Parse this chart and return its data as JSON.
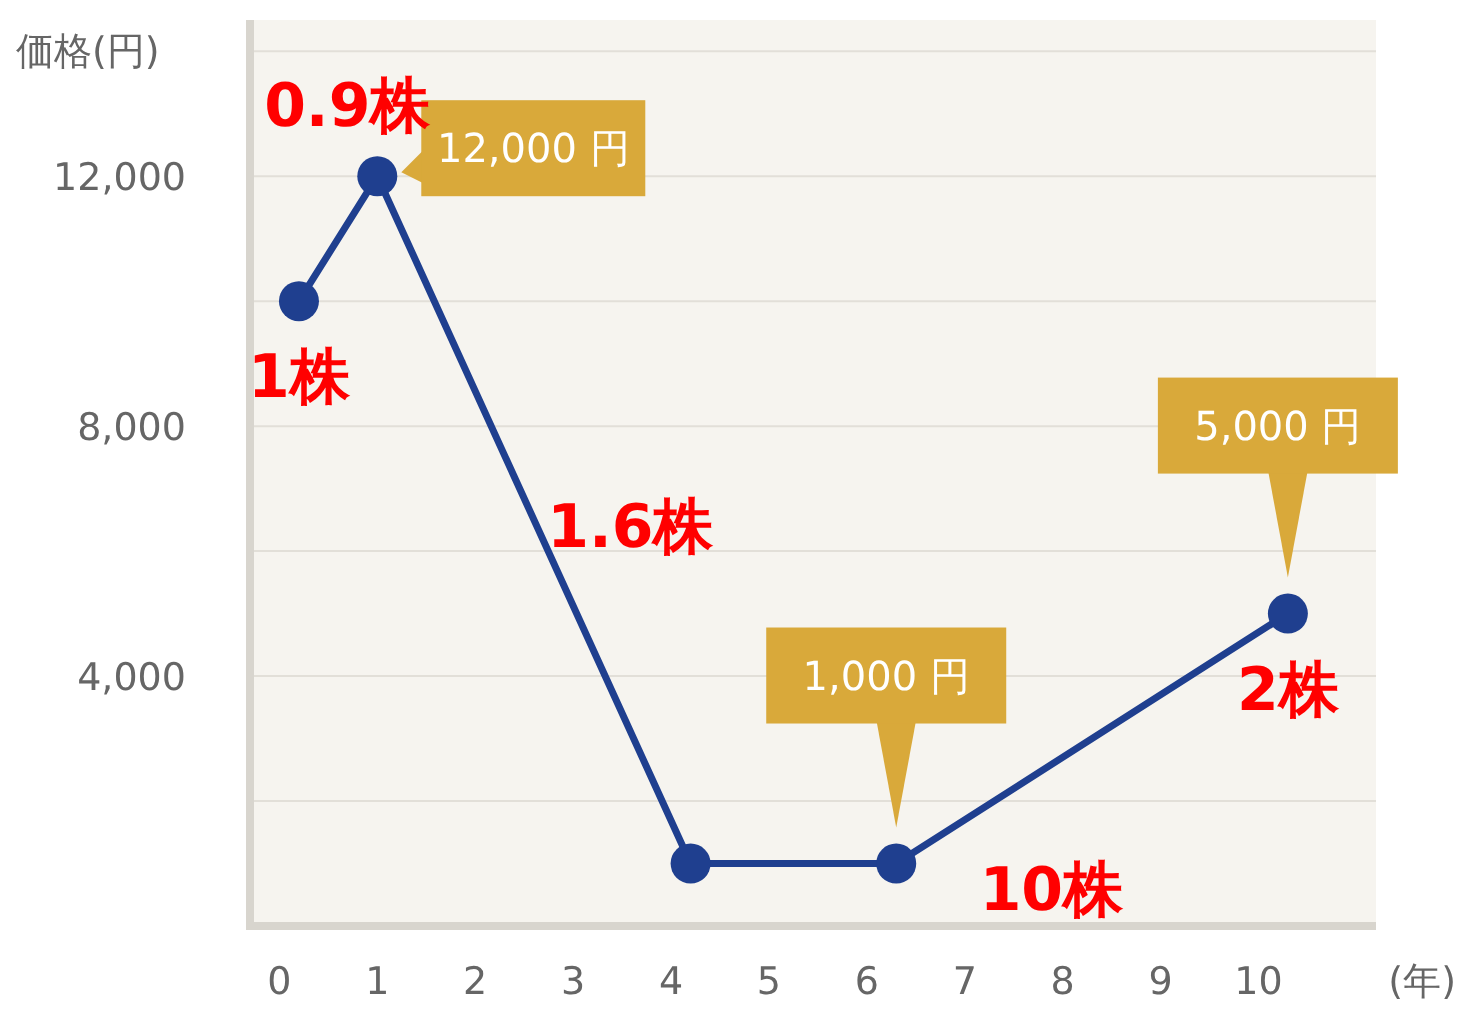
{
  "chart_data": {
    "type": "line",
    "ylabel": "価格(円)",
    "xlabel": "(年)",
    "x": [
      0.2,
      1,
      4.2,
      6.3,
      10.3
    ],
    "values": [
      10000,
      12000,
      1000,
      1000,
      5000
    ],
    "color": "#1f3f8f",
    "marker": "circle",
    "line_style": "solid",
    "grid": "y",
    "value_labels": [
      null,
      "12,000 円",
      null,
      "1,000 円",
      "5,000 円"
    ],
    "xlim": [
      -0.3,
      11.2
    ],
    "ylim": [
      0,
      14500
    ],
    "xticks": [
      0,
      1,
      2,
      3,
      4,
      5,
      6,
      7,
      8,
      9,
      10
    ],
    "yticks": [
      {
        "value": 2000,
        "label": null
      },
      {
        "value": 4000,
        "label": "4,000"
      },
      {
        "value": 6000,
        "label": null
      },
      {
        "value": 8000,
        "label": "8,000"
      },
      {
        "value": 10000,
        "label": null
      },
      {
        "value": 12000,
        "label": "12,000"
      },
      {
        "value": 14000,
        "label": null
      }
    ],
    "annotations": [
      {
        "text": "0.9株",
        "x": 1,
        "y": 12000
      },
      {
        "text": "1株",
        "x": 0.2,
        "y": 10000
      },
      {
        "text": "1.6株",
        "x": 2.4,
        "y": 7188
      },
      {
        "text": "10株",
        "x": 6.7,
        "y": 1375
      },
      {
        "text": "2株",
        "x": 10.3,
        "y": 5000
      }
    ]
  }
}
